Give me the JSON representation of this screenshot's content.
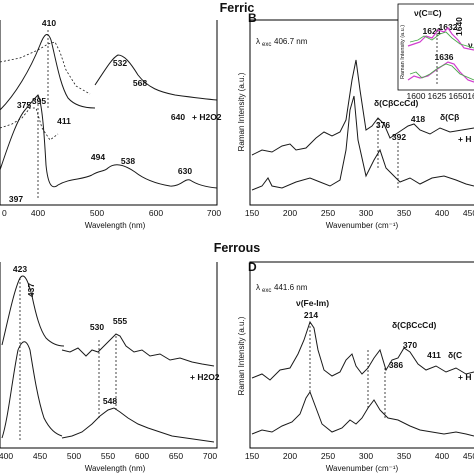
{
  "sections": {
    "top": "Ferric",
    "bottom": "Ferrous"
  },
  "panels": {
    "B": "B",
    "D": "D"
  },
  "excitation": {
    "B_prefix": "λ",
    "B_sub": "exc",
    "B_value": " 406.7 nm",
    "D_prefix": "λ",
    "D_sub": "exc",
    "D_value": " 441.6 nm"
  },
  "inset": {
    "title": "ν(C=C)",
    "ylabel": "Raman Intensity (a.u.)",
    "xticks": [
      "1600",
      "1625",
      "1650",
      "16"
    ],
    "labels": [
      "1621",
      "1632",
      "1640",
      "1636",
      "ν"
    ]
  },
  "chart_data": [
    {
      "id": "ferric-absorption",
      "type": "line",
      "xlabel": "Wavelength (nm)",
      "xlim": [
        320,
        700
      ],
      "xticks": [
        "400",
        "500",
        "600",
        "700"
      ],
      "partial_ticks": [
        "0"
      ],
      "annotation": "+ H2O2",
      "peak_labels": [
        "410",
        "532",
        "568",
        "640",
        "375",
        "395",
        "411",
        "494",
        "538",
        "630",
        "397"
      ],
      "series": [
        {
          "values": [
            [
              330,
              0.2
            ],
            [
              360,
              0.35
            ],
            [
              380,
              0.6
            ],
            [
              395,
              0.95
            ],
            [
              410,
              1.0
            ],
            [
              425,
              0.45
            ],
            [
              440,
              0.12
            ],
            [
              460,
              0.05
            ]
          ]
        },
        {
          "values": [
            [
              490,
              0.1
            ],
            [
              510,
              0.35
            ],
            [
              532,
              0.55
            ],
            [
              568,
              0.4
            ],
            [
              600,
              0.18
            ],
            [
              640,
              0.08
            ],
            [
              700,
              0.02
            ]
          ]
        },
        {
          "values": [
            [
              330,
              0.3
            ],
            [
              375,
              0.55
            ],
            [
              395,
              0.75
            ],
            [
              411,
              0.55
            ],
            [
              440,
              0.2
            ],
            [
              470,
              0.12
            ]
          ]
        },
        {
          "values": [
            [
              470,
              0.15
            ],
            [
              494,
              0.35
            ],
            [
              538,
              0.25
            ],
            [
              600,
              0.08
            ],
            [
              630,
              0.1
            ],
            [
              700,
              0.0
            ]
          ]
        }
      ]
    },
    {
      "id": "ferric-raman",
      "type": "line",
      "xlabel": "Wavenumber (cm⁻¹)",
      "ylabel": "Raman Intensity (a.u.)",
      "xlim": [
        150,
        470
      ],
      "xticks": [
        "150",
        "200",
        "250",
        "300",
        "350",
        "400",
        "450"
      ],
      "annotation": "+ H",
      "peak_labels": [
        "376",
        "392",
        "418"
      ],
      "mode_labels": [
        "δ(CβCcCd)",
        "δ(Cβ"
      ],
      "series": [
        {
          "values": [
            [
              150,
              0.4
            ],
            [
              185,
              0.45
            ],
            [
              200,
              0.4
            ],
            [
              260,
              0.55
            ],
            [
              300,
              0.45
            ],
            [
              345,
              0.6
            ],
            [
              350,
              1.0
            ],
            [
              360,
              0.7
            ],
            [
              376,
              0.75
            ],
            [
              392,
              0.65
            ],
            [
              418,
              0.7
            ],
            [
              470,
              0.6
            ]
          ]
        },
        {
          "values": [
            [
              150,
              0.05
            ],
            [
              185,
              0.15
            ],
            [
              200,
              0.05
            ],
            [
              260,
              0.2
            ],
            [
              300,
              0.1
            ],
            [
              345,
              0.6
            ],
            [
              350,
              0.85
            ],
            [
              360,
              0.4
            ],
            [
              376,
              0.5
            ],
            [
              392,
              0.3
            ],
            [
              418,
              0.25
            ],
            [
              470,
              0.15
            ]
          ]
        }
      ]
    },
    {
      "id": "ferrous-absorption",
      "type": "line",
      "xlabel": "Wavelength (nm)",
      "xlim": [
        395,
        700
      ],
      "xticks": [
        "400",
        "450",
        "500",
        "550",
        "600",
        "650",
        "700"
      ],
      "annotation": "+ H2O2",
      "peak_labels": [
        "423",
        "437",
        "530",
        "555",
        "548"
      ],
      "series": [
        {
          "values": [
            [
              398,
              0.25
            ],
            [
              410,
              0.7
            ],
            [
              423,
              1.0
            ],
            [
              437,
              0.75
            ],
            [
              455,
              0.2
            ],
            [
              475,
              0.05
            ]
          ]
        },
        {
          "values": [
            [
              470,
              0.55
            ],
            [
              500,
              0.58
            ],
            [
              530,
              0.66
            ],
            [
              555,
              0.72
            ],
            [
              590,
              0.58
            ],
            [
              700,
              0.5
            ]
          ]
        },
        {
          "values": [
            [
              398,
              0.1
            ],
            [
              410,
              0.45
            ],
            [
              423,
              0.65
            ],
            [
              440,
              0.35
            ],
            [
              460,
              0.05
            ]
          ]
        },
        {
          "values": [
            [
              470,
              0.0
            ],
            [
              510,
              0.05
            ],
            [
              548,
              0.25
            ],
            [
              580,
              0.15
            ],
            [
              650,
              0.05
            ],
            [
              700,
              0.0
            ]
          ]
        }
      ]
    },
    {
      "id": "ferrous-raman",
      "type": "line",
      "xlabel": "Wavenumber (cm⁻¹)",
      "ylabel": "Raman Intensity (a.u.)",
      "xlim": [
        150,
        470
      ],
      "xticks": [
        "150",
        "200",
        "250",
        "300",
        "350",
        "400",
        "450"
      ],
      "annotation": "+ H",
      "mode_labels": [
        "ν(Fe-Im)",
        "δ(CβCcCd)",
        "δ(C"
      ],
      "peak_labels": [
        "214",
        "370",
        "386",
        "411"
      ],
      "series": [
        {
          "values": [
            [
              150,
              0.35
            ],
            [
              190,
              0.4
            ],
            [
              214,
              0.7
            ],
            [
              235,
              0.4
            ],
            [
              300,
              0.38
            ],
            [
              345,
              0.55
            ],
            [
              370,
              0.6
            ],
            [
              386,
              0.45
            ],
            [
              411,
              0.55
            ],
            [
              470,
              0.4
            ]
          ]
        },
        {
          "values": [
            [
              150,
              0.05
            ],
            [
              190,
              0.1
            ],
            [
              214,
              0.35
            ],
            [
              235,
              0.1
            ],
            [
              300,
              0.08
            ],
            [
              345,
              0.15
            ],
            [
              370,
              0.22
            ],
            [
              386,
              0.12
            ],
            [
              411,
              0.1
            ],
            [
              470,
              0.0
            ]
          ]
        }
      ]
    }
  ]
}
